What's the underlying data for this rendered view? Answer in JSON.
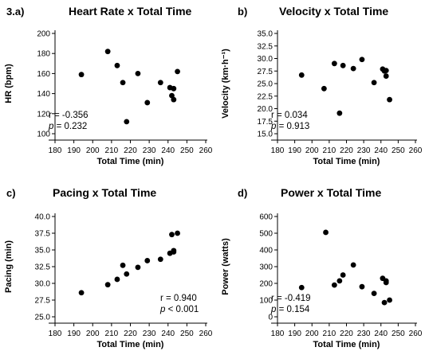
{
  "chart_data": [
    {
      "type": "scatter",
      "panel_label": "3.a)",
      "title": "Heart Rate x Total Time",
      "xlabel": "Total Time (min)",
      "ylabel": "HR (bpm)",
      "xlim": [
        180,
        260
      ],
      "ylim": [
        100,
        200
      ],
      "xticks": [
        "180",
        "190",
        "200",
        "210",
        "220",
        "230",
        "240",
        "250",
        "260"
      ],
      "yticks": [
        "100",
        "120",
        "140",
        "160",
        "180",
        "200"
      ],
      "stat_r": "r = -0.356",
      "stat_p_sym": "p",
      "stat_p_val": " = 0.232",
      "stat_pos": "bottom-left",
      "points": [
        [
          194,
          159
        ],
        [
          208,
          182
        ],
        [
          213,
          168
        ],
        [
          216,
          151
        ],
        [
          218,
          112
        ],
        [
          224,
          160
        ],
        [
          229,
          131
        ],
        [
          236,
          151
        ],
        [
          241,
          146
        ],
        [
          242,
          138
        ],
        [
          243,
          145
        ],
        [
          243,
          134
        ],
        [
          245,
          162
        ]
      ]
    },
    {
      "type": "scatter",
      "panel_label": "b)",
      "title": "Velocity x Total Time",
      "xlabel": "Total Time (min)",
      "ylabel": "Velocity (km·h⁻¹)",
      "xlim": [
        180,
        260
      ],
      "ylim": [
        15.0,
        35.0
      ],
      "xticks": [
        "180",
        "190",
        "200",
        "210",
        "220",
        "230",
        "240",
        "250",
        "260"
      ],
      "yticks": [
        "15.0",
        "17.5",
        "20.0",
        "22.5",
        "25.0",
        "27.5",
        "30.0",
        "32.5",
        "35.0"
      ],
      "stat_r": "r = 0.034",
      "stat_p_sym": "p",
      "stat_p_val": " = 0.913",
      "stat_pos": "bottom-left",
      "points": [
        [
          194,
          26.7
        ],
        [
          207,
          24.0
        ],
        [
          213,
          29.0
        ],
        [
          216,
          19.1
        ],
        [
          218,
          28.6
        ],
        [
          224,
          28.0
        ],
        [
          229,
          29.8
        ],
        [
          236,
          25.2
        ],
        [
          241,
          27.9
        ],
        [
          242,
          27.5
        ],
        [
          243,
          26.5
        ],
        [
          243,
          27.6
        ],
        [
          245,
          21.8
        ]
      ]
    },
    {
      "type": "scatter",
      "panel_label": "c)",
      "title": "Pacing x Total Time",
      "xlabel": "Total Time (min)",
      "ylabel": "Pacing (min)",
      "xlim": [
        180,
        260
      ],
      "ylim": [
        25.0,
        40.0
      ],
      "xticks": [
        "180",
        "190",
        "200",
        "210",
        "220",
        "230",
        "240",
        "250",
        "260"
      ],
      "yticks": [
        "25.0",
        "27.5",
        "30.0",
        "32.5",
        "35.0",
        "37.5",
        "40.0"
      ],
      "stat_r": "r = 0.940",
      "stat_p_sym": "p",
      "stat_p_val": " < 0.001",
      "stat_pos": "bottom-right",
      "points": [
        [
          194,
          28.6
        ],
        [
          208,
          29.8
        ],
        [
          213,
          30.6
        ],
        [
          216,
          32.7
        ],
        [
          218,
          31.4
        ],
        [
          224,
          32.4
        ],
        [
          229,
          33.4
        ],
        [
          236,
          33.6
        ],
        [
          241,
          34.5
        ],
        [
          242,
          37.3
        ],
        [
          243,
          34.9
        ],
        [
          243,
          34.7
        ],
        [
          245,
          37.5
        ]
      ]
    },
    {
      "type": "scatter",
      "panel_label": "d)",
      "title": "Power x Total Time",
      "xlabel": "Total Time (min)",
      "ylabel": "Power (watts)",
      "xlim": [
        180,
        260
      ],
      "ylim": [
        0,
        600
      ],
      "xticks": [
        "180",
        "190",
        "200",
        "210",
        "220",
        "230",
        "240",
        "250",
        "260"
      ],
      "yticks": [
        "0",
        "100",
        "200",
        "300",
        "400",
        "500",
        "600"
      ],
      "stat_r": "r = -0.419",
      "stat_p_sym": "p",
      "stat_p_val": " = 0.154",
      "stat_pos": "bottom-left",
      "points": [
        [
          194,
          175
        ],
        [
          208,
          505
        ],
        [
          213,
          190
        ],
        [
          216,
          215
        ],
        [
          218,
          250
        ],
        [
          224,
          310
        ],
        [
          229,
          180
        ],
        [
          236,
          140
        ],
        [
          241,
          230
        ],
        [
          242,
          85
        ],
        [
          243,
          205
        ],
        [
          243,
          215
        ],
        [
          245,
          100
        ]
      ]
    }
  ]
}
